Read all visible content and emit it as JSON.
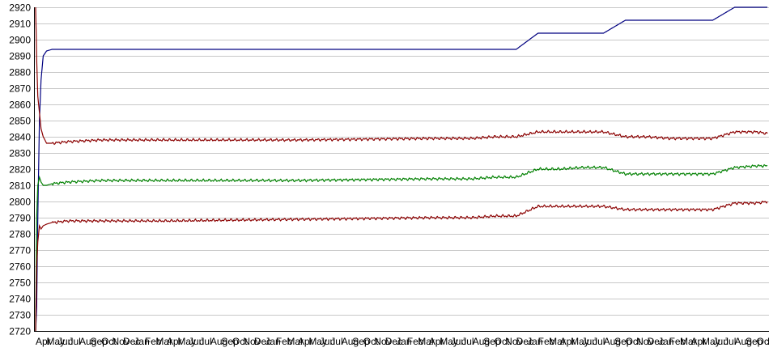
{
  "chart_data": {
    "type": "line",
    "title": "",
    "xlabel": "",
    "ylabel": "",
    "ylim": [
      2720,
      2920
    ],
    "yticks": [
      2720,
      2730,
      2740,
      2750,
      2760,
      2770,
      2780,
      2790,
      2800,
      2810,
      2820,
      2830,
      2840,
      2850,
      2860,
      2870,
      2880,
      2890,
      2900,
      2910,
      2920
    ],
    "grid": true,
    "legend": "none",
    "x_start_month": "2019-04",
    "xtick_labels": [
      "Apr",
      "May",
      "Jun",
      "Jul",
      "Aug",
      "Sep",
      "Oct",
      "Nov",
      "Dec",
      "Jan",
      "Feb",
      "Mar",
      "Apr",
      "May",
      "Jun",
      "Jul",
      "Aug",
      "Sep",
      "Oct",
      "Nov",
      "Dec",
      "Jan",
      "Feb",
      "Mar",
      "Apr",
      "May",
      "Jun",
      "Jul",
      "Aug",
      "Sep",
      "Oct",
      "Nov",
      "Dec",
      "Jan",
      "Feb",
      "Mar",
      "Apr",
      "May",
      "Jun",
      "Jul",
      "Aug",
      "Sep",
      "Oct",
      "Nov",
      "Dec",
      "Jan",
      "Feb",
      "Mar",
      "Apr",
      "May",
      "Jun",
      "Jul",
      "Aug",
      "Sep",
      "Oct",
      "Nov",
      "Dec",
      "Jan",
      "Feb",
      "Mar",
      "Apr",
      "May",
      "Jun",
      "Jul",
      "Aug",
      "Sep",
      "Oct",
      "Nov"
    ],
    "x": [
      0,
      0.1,
      0.2,
      0.35,
      0.5,
      0.7,
      1.0,
      1.5,
      3,
      6,
      12,
      24,
      36,
      38,
      40,
      42,
      44,
      46,
      48,
      50,
      52,
      54,
      56,
      58,
      60,
      62,
      64,
      66,
      67
    ],
    "series": [
      {
        "color": "#000080",
        "values": [
          2720,
          2735,
          2790,
          2850,
          2875,
          2890,
          2893,
          2894,
          2894,
          2894,
          2894,
          2894,
          2894,
          2894,
          2894,
          2894,
          2894,
          2904,
          2904,
          2904,
          2904,
          2912,
          2912,
          2912,
          2912,
          2912,
          2920,
          2920,
          2920
        ]
      },
      {
        "color": "#8B0000",
        "values": [
          2920,
          2888,
          2865,
          2855,
          2845,
          2840,
          2836,
          2836,
          2837,
          2838,
          2838,
          2838,
          2839,
          2839,
          2839,
          2840,
          2840,
          2843,
          2843,
          2843,
          2843,
          2840,
          2840,
          2839,
          2839,
          2839,
          2843,
          2843,
          2842
        ]
      },
      {
        "color": "#008000",
        "values": [
          2720,
          2790,
          2810,
          2815,
          2812,
          2810,
          2810,
          2811,
          2812,
          2813,
          2813,
          2813,
          2814,
          2814,
          2814,
          2815,
          2815,
          2820,
          2820,
          2821,
          2821,
          2817,
          2817,
          2817,
          2817,
          2817,
          2821,
          2822,
          2822
        ]
      },
      {
        "color": "#8B0000",
        "values": [
          2720,
          2760,
          2775,
          2785,
          2783,
          2785,
          2786,
          2787,
          2788,
          2788,
          2788,
          2789,
          2790,
          2790,
          2790,
          2791,
          2791,
          2797,
          2797,
          2797,
          2797,
          2795,
          2795,
          2795,
          2795,
          2795,
          2799,
          2799,
          2800
        ]
      }
    ]
  }
}
